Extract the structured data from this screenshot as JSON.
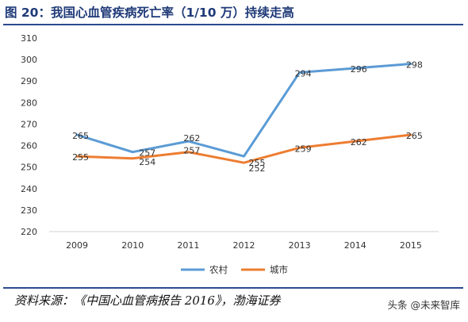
{
  "title": "图 20：我国心血管疾病死亡率（1/10 万）持续走高",
  "source": "资料来源：《中国心血管病报告 2016》，渤海证券",
  "watermark": "头条 @未来智库",
  "chart_data": {
    "type": "line",
    "title": "图 20：我国心血管疾病死亡率（1/10 万）持续走高",
    "xlabel": "",
    "ylabel": "",
    "categories": [
      "2009",
      "2010",
      "2011",
      "2012",
      "2013",
      "2014",
      "2015"
    ],
    "ylim": [
      220,
      310
    ],
    "yticks": [
      220,
      230,
      240,
      250,
      260,
      270,
      280,
      290,
      300,
      310
    ],
    "grid": false,
    "legend_position": "bottom-center",
    "series": [
      {
        "name": "农村",
        "color": "#5b9bd5",
        "values": [
          265,
          257,
          262,
          255,
          294,
          296,
          298
        ],
        "labels": [
          "265",
          "257",
          "262",
          "255",
          "294",
          "296",
          "298"
        ]
      },
      {
        "name": "城市",
        "color": "#ed7d31",
        "values": [
          255,
          254,
          257,
          252,
          259,
          262,
          265
        ],
        "labels": [
          "255",
          "254",
          "257",
          "252",
          "259",
          "262",
          "265"
        ]
      }
    ]
  }
}
